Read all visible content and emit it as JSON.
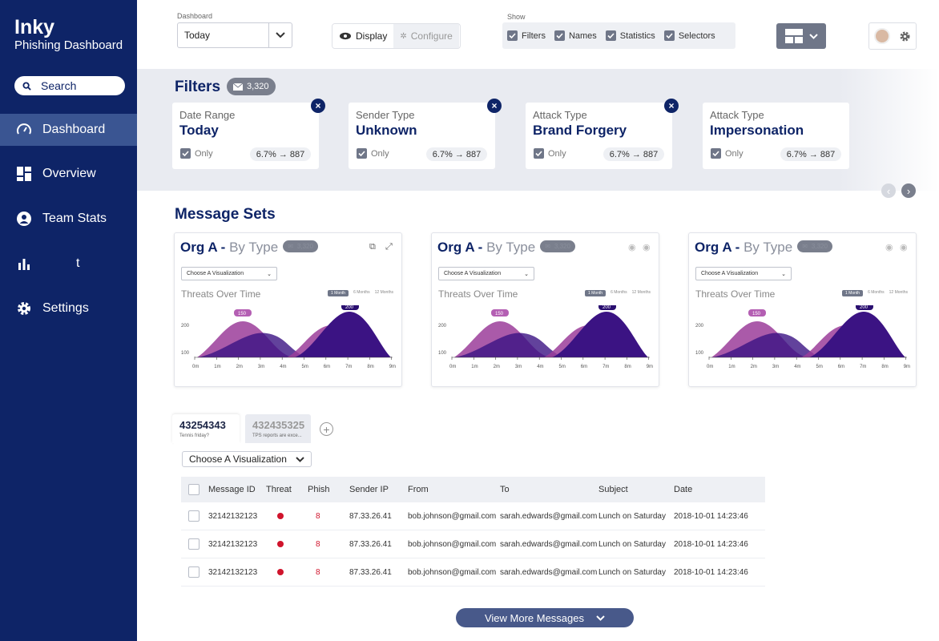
{
  "sidebar": {
    "title": "Inky",
    "subtitle": "Phishing Dashboard",
    "search_label": "Search",
    "items": [
      {
        "label": "Dashboard",
        "icon": "speedometer-icon"
      },
      {
        "label": "Overview",
        "icon": "grid-icon"
      },
      {
        "label": "Team Stats",
        "icon": "person-icon"
      },
      {
        "label": "t",
        "icon": "bar-chart-icon"
      },
      {
        "label": "Settings",
        "icon": "gear-icon"
      }
    ]
  },
  "topbar": {
    "dashboard_label": "Dashboard",
    "dashboard_value": "Today",
    "display_label": "Display",
    "configure_label": "Configure",
    "show_label": "Show",
    "show_options": [
      "Filters",
      "Names",
      "Statistics",
      "Selectors"
    ]
  },
  "filters": {
    "title": "Filters",
    "count": "3,320",
    "cards": [
      {
        "type": "Date Range",
        "value": "Today",
        "only": "Only",
        "stat": "6.7% → 887"
      },
      {
        "type": "Sender Type",
        "value": "Unknown",
        "only": "Only",
        "stat": "6.7% → 887"
      },
      {
        "type": "Attack Type",
        "value": "Brand Forgery",
        "only": "Only",
        "stat": "6.7% → 887"
      },
      {
        "type": "Attack Type",
        "value": "Impersonation",
        "only": "Only",
        "stat": "6.7% → 887"
      }
    ]
  },
  "message_sets": {
    "title": "Message Sets",
    "cards": [
      {
        "org": "Org A -",
        "by": "By Type",
        "count": "3,320",
        "viz": "Choose A Visualization",
        "chart_title": "Threats Over Time",
        "ranges": [
          "1 Month",
          "6 Months",
          "12 Months"
        ],
        "label1": "150",
        "label2": "200"
      },
      {
        "org": "Org A -",
        "by": "By Type",
        "count": "3,320",
        "viz": "Choose A Visualization",
        "chart_title": "Threats Over Time",
        "ranges": [
          "1 Month",
          "6 Months",
          "12 Months"
        ],
        "label1": "150",
        "label2": "200"
      },
      {
        "org": "Org A -",
        "by": "By Type",
        "count": "3,320",
        "viz": "Choose A Visualization",
        "chart_title": "Threats Over Time",
        "ranges": [
          "1 Month",
          "6 Months",
          "12 Months"
        ],
        "label1": "150",
        "label2": "200"
      }
    ],
    "y_ticks": [
      "200",
      "100"
    ],
    "x_ticks": [
      "0m",
      "1m",
      "2m",
      "3m",
      "4m",
      "5m",
      "6m",
      "7m",
      "8m",
      "9m"
    ]
  },
  "tabs": [
    {
      "id": "43254343",
      "sub": "Tennis friday?"
    },
    {
      "id": "432435325",
      "sub": "TPS reports are exce..."
    }
  ],
  "table": {
    "viz": "Choose A Visualization",
    "headers": [
      "Message ID",
      "Threat",
      "Phish",
      "Sender IP",
      "From",
      "To",
      "Subject",
      "Date"
    ],
    "rows": [
      {
        "id": "32142132123",
        "phish": "8",
        "ip": "87.33.26.41",
        "from": "bob.johnson@gmail.com",
        "to": "sarah.edwards@gmail.com",
        "subject": "Lunch on Saturday",
        "date": "2018-10-01 14:23:46"
      },
      {
        "id": "32142132123",
        "phish": "8",
        "ip": "87.33.26.41",
        "from": "bob.johnson@gmail.com",
        "to": "sarah.edwards@gmail.com",
        "subject": "Lunch on Saturday",
        "date": "2018-10-01 14:23:46"
      },
      {
        "id": "32142132123",
        "phish": "8",
        "ip": "87.33.26.41",
        "from": "bob.johnson@gmail.com",
        "to": "sarah.edwards@gmail.com",
        "subject": "Lunch on Saturday",
        "date": "2018-10-01 14:23:46"
      }
    ],
    "view_more": "View More Messages"
  },
  "colors": {
    "navy": "#0e2467",
    "purple_light": "#9b3d9a",
    "purple_dark": "#3b1383",
    "threat": "#d0142c"
  }
}
